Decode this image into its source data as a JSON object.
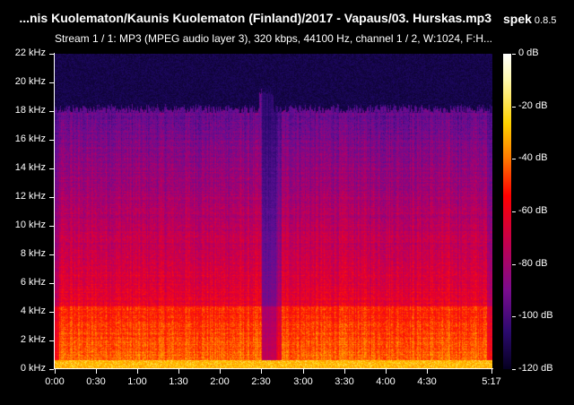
{
  "header": {
    "title": "...nis Kuolematon/Kaunis Kuolematon (Finland)/2017 - Vapaus/03. Hurskas.mp3",
    "app_name": "spek",
    "app_version": "0.8.5",
    "stream_info": "Stream 1 / 1: MP3 (MPEG audio layer 3), 320 kbps, 44100 Hz, channel 1 / 2, W:1024, F:H..."
  },
  "axes": {
    "frequency_ticks": [
      "22 kHz",
      "20 kHz",
      "18 kHz",
      "16 kHz",
      "14 kHz",
      "12 kHz",
      "10 kHz",
      "8 kHz",
      "6 kHz",
      "4 kHz",
      "2 kHz",
      "0 kHz"
    ],
    "time_ticks": [
      "0:00",
      "0:30",
      "1:00",
      "1:30",
      "2:00",
      "2:30",
      "3:00",
      "3:30",
      "4:00",
      "4:30",
      "5:17"
    ],
    "time_tick_seconds": [
      0,
      30,
      60,
      90,
      120,
      150,
      180,
      210,
      240,
      270,
      317
    ],
    "duration_seconds": 317,
    "freq_max_khz": 22
  },
  "colorbar": {
    "labels": [
      "0 dB",
      "-20 dB",
      "-40 dB",
      "-60 dB",
      "-80 dB",
      "-100 dB",
      "-120 dB"
    ]
  }
}
